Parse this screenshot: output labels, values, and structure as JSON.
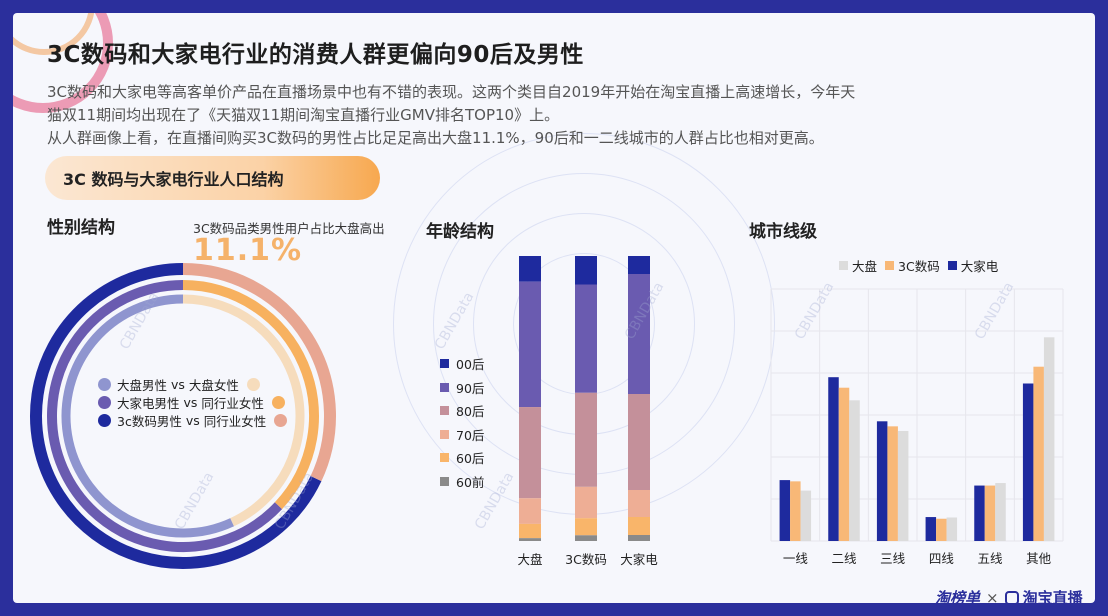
{
  "title": "3C数码和大家电行业的消费人群更偏向90后及男性",
  "description": [
    "3C数码和大家电等高客单价产品在直播场景中也有不错的表现。这两个类目自2019年开始在淘宝直播上高速增长，今年天",
    "猫双11期间均出现在了《天猫双11期间淘宝直播行业GMV排名TOP10》上。",
    "从人群画像上看，在直播间购买3C数码的男性占比足足高出大盘11.1%，90后和一二线城市的人群占比也相对更高。"
  ],
  "section_label": "3C 数码与大家电行业人口结构",
  "gender": {
    "heading": "性别结构",
    "callout_text": "3C数码品类男性用户占比大盘高出",
    "callout_value": "11.1%",
    "legend": [
      {
        "left": "大盘男性",
        "vs": "vs",
        "right": "大盘女性",
        "left_color": "#8f95cf",
        "right_color": "#f6dcbc"
      },
      {
        "left": "大家电男性",
        "vs": "vs",
        "right": "同行业女性",
        "left_color": "#6a5bb0",
        "right_color": "#f7b15f"
      },
      {
        "left": "3c数码男性",
        "vs": "vs",
        "right": "同行业女性",
        "left_color": "#1e2a9e",
        "right_color": "#e8a692"
      }
    ]
  },
  "age": {
    "heading": "年龄结构",
    "legend": [
      "00后",
      "90后",
      "80后",
      "70后",
      "60后",
      "60前"
    ],
    "colors": [
      "#1e2a9e",
      "#6a5bb0",
      "#c4909a",
      "#eeae95",
      "#f9b56a",
      "#8a8a8a"
    ]
  },
  "city": {
    "heading": "城市线级",
    "legend": [
      "大盘",
      "3C数码",
      "大家电"
    ],
    "colors": [
      "#dcdcdc",
      "#f8b877",
      "#1e2a9e"
    ]
  },
  "logos": {
    "left": "淘榜单",
    "x": "×",
    "right": "淘宝直播"
  },
  "watermark": "CBNData",
  "chart_data": [
    {
      "type": "pie",
      "title": "性别结构",
      "rings": [
        {
          "name": "3c数码男性 vs 同行业女性",
          "male": 68.0,
          "female": 32.0
        },
        {
          "name": "大家电男性 vs 同行业女性",
          "male": 63.0,
          "female": 37.0
        },
        {
          "name": "大盘男性 vs 大盘女性",
          "male": 56.9,
          "female": 43.1
        }
      ]
    },
    {
      "type": "bar",
      "title": "年龄结构",
      "stacked": true,
      "categories": [
        "大盘",
        "3C数码",
        "大家电"
      ],
      "series": [
        {
          "name": "00后",
          "values": [
            9,
            10,
            6
          ]
        },
        {
          "name": "90后",
          "values": [
            44,
            38,
            40
          ]
        },
        {
          "name": "80后",
          "values": [
            32,
            33,
            32
          ]
        },
        {
          "name": "70后",
          "values": [
            9,
            11,
            9
          ]
        },
        {
          "name": "60后",
          "values": [
            5,
            6,
            6
          ]
        },
        {
          "name": "60前",
          "values": [
            1,
            2,
            2
          ]
        }
      ],
      "ylim": [
        0,
        100
      ]
    },
    {
      "type": "bar",
      "title": "城市线级",
      "categories": [
        "一线",
        "二线",
        "三线",
        "四线",
        "五线",
        "其他"
      ],
      "series": [
        {
          "name": "大家电",
          "values": [
            14.5,
            39,
            28.5,
            5.7,
            13.2,
            37.5
          ]
        },
        {
          "name": "3C数码",
          "values": [
            14.2,
            36.5,
            27.3,
            5.3,
            13.2,
            41.5
          ]
        },
        {
          "name": "大盘",
          "values": [
            12,
            33.5,
            26.2,
            5.6,
            13.8,
            48.5
          ]
        }
      ],
      "ylim": [
        0,
        60
      ],
      "grid": true
    }
  ]
}
